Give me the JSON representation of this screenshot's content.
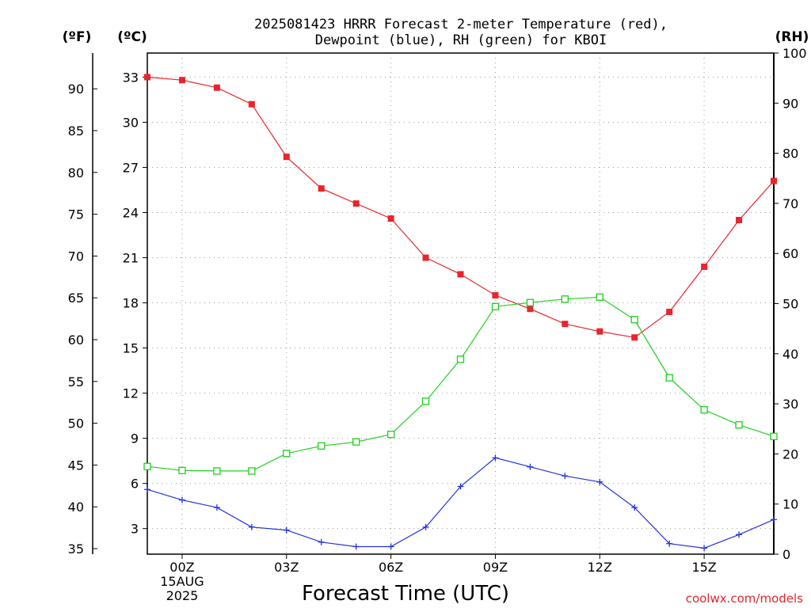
{
  "chart_data": {
    "type": "line",
    "title_lines": [
      "2025081423 HRRR Forecast 2-meter Temperature (red),",
      "Dewpoint (blue), RH (green) for KBOI"
    ],
    "xlabel": "Forecast Time (UTC)",
    "credit": "coolwx.com/models",
    "unit_labels": {
      "fahrenheit": "(ºF)",
      "celsius": "(ºC)",
      "rh": "(RH)"
    },
    "x": [
      23,
      0,
      1,
      2,
      3,
      4,
      5,
      6,
      7,
      8,
      9,
      10,
      11,
      12,
      13,
      14,
      15,
      16,
      17
    ],
    "x_tick_labels": [
      {
        "hour": 0,
        "lines": [
          "00Z",
          "15AUG",
          "2025"
        ]
      },
      {
        "hour": 3,
        "lines": [
          "03Z"
        ]
      },
      {
        "hour": 6,
        "lines": [
          "06Z"
        ]
      },
      {
        "hour": 9,
        "lines": [
          "09Z"
        ]
      },
      {
        "hour": 12,
        "lines": [
          "12Z"
        ]
      },
      {
        "hour": 15,
        "lines": [
          "15Z"
        ]
      }
    ],
    "ylim_celsius": [
      1.3,
      34.6
    ],
    "yticks_celsius": [
      3,
      6,
      9,
      12,
      15,
      18,
      21,
      24,
      27,
      30,
      33
    ],
    "yticks_fahrenheit": [
      35,
      40,
      45,
      50,
      55,
      60,
      65,
      70,
      75,
      80,
      85,
      90
    ],
    "ylim_rh": [
      0,
      100
    ],
    "yticks_rh": [
      0,
      10,
      20,
      30,
      40,
      50,
      60,
      70,
      80,
      90,
      100
    ],
    "grid": true,
    "series": [
      {
        "name": "Temperature",
        "axis": "celsius",
        "color": "#e8242c",
        "marker": "filled-square",
        "values": [
          33.0,
          32.8,
          32.3,
          31.2,
          27.7,
          25.6,
          24.6,
          23.6,
          21.0,
          19.9,
          18.5,
          17.6,
          16.6,
          16.1,
          15.7,
          17.4,
          20.4,
          23.5,
          26.1
        ]
      },
      {
        "name": "Dewpoint",
        "axis": "celsius",
        "color": "#2233dd",
        "marker": "plus",
        "values": [
          5.6,
          4.9,
          4.4,
          3.1,
          2.9,
          2.1,
          1.8,
          1.8,
          3.1,
          5.8,
          7.7,
          7.1,
          6.5,
          6.1,
          4.4,
          2.0,
          1.7,
          2.6,
          3.6
        ]
      },
      {
        "name": "Relative Humidity",
        "axis": "rh",
        "color": "#1ed01e",
        "marker": "open-square",
        "values": [
          17.5,
          16.7,
          16.6,
          16.6,
          20.1,
          21.6,
          22.4,
          23.9,
          30.5,
          38.9,
          49.4,
          50.2,
          50.9,
          51.3,
          46.8,
          35.2,
          28.8,
          25.8,
          23.5
        ]
      }
    ]
  }
}
